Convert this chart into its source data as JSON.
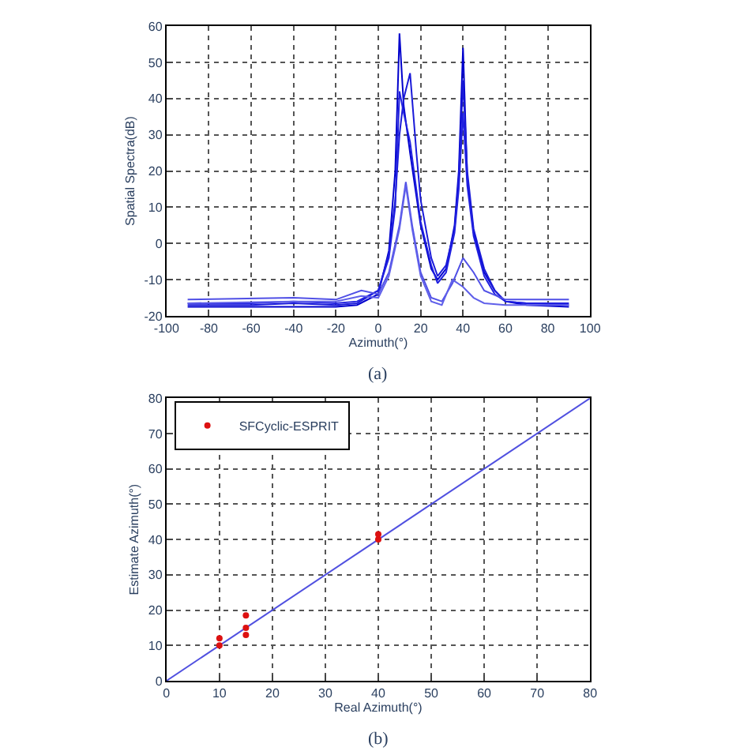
{
  "chart_data": [
    {
      "type": "line",
      "xlabel": "Azimuth(°)",
      "ylabel": "Spatial Spectra(dB)",
      "annotations": [
        "(a)"
      ],
      "xlim": [
        -100,
        100
      ],
      "xticks": [
        -100,
        -80,
        -60,
        -40,
        -20,
        0,
        20,
        40,
        60,
        80,
        100
      ],
      "ylim": [
        -20,
        60
      ],
      "yticks": [
        -20,
        -10,
        0,
        10,
        20,
        30,
        40,
        50,
        60
      ],
      "grid": true,
      "legend": false,
      "line_style": "solid",
      "series": [
        {
          "color": "#0000cc",
          "x": [
            -90,
            -60,
            -40,
            -20,
            -10,
            0,
            5,
            8,
            10,
            12,
            15,
            20,
            25,
            28,
            32,
            36,
            38,
            40,
            42,
            45,
            50,
            55,
            60,
            70,
            90
          ],
          "values": [
            -17.5,
            -17.5,
            -17.5,
            -17.5,
            -17,
            -14,
            -2,
            20,
            58,
            38,
            25,
            5,
            -7,
            -10,
            -7,
            5,
            20,
            54,
            18,
            3,
            -8,
            -13,
            -16,
            -17,
            -17.5
          ]
        },
        {
          "color": "#1a1ad9",
          "x": [
            -90,
            -60,
            -40,
            -20,
            -10,
            0,
            5,
            8,
            10,
            12,
            15,
            18,
            20,
            25,
            28,
            32,
            36,
            38,
            40,
            42,
            45,
            50,
            55,
            60,
            70,
            90
          ],
          "values": [
            -17,
            -17,
            -16.5,
            -17,
            -16.5,
            -13,
            -3,
            12,
            30,
            40,
            47,
            25,
            12,
            -4,
            -9,
            -6,
            4,
            18,
            45,
            20,
            4,
            -7,
            -13,
            -16,
            -16.5,
            -17
          ]
        },
        {
          "color": "#2020e0",
          "x": [
            -90,
            -60,
            -40,
            -20,
            -10,
            0,
            5,
            8,
            10,
            12,
            15,
            20,
            25,
            28,
            32,
            36,
            38,
            40,
            42,
            45,
            50,
            55,
            60,
            70,
            90
          ],
          "values": [
            -16.5,
            -16.5,
            -16,
            -16.5,
            -16,
            -13,
            -4,
            10,
            42,
            36,
            28,
            6,
            -6,
            -11,
            -8,
            3,
            15,
            36,
            16,
            2,
            -9,
            -14,
            -16,
            -16.5,
            -16.5
          ]
        },
        {
          "color": "#5050e6",
          "x": [
            -90,
            -40,
            -20,
            -8,
            0,
            5,
            10,
            13,
            16,
            20,
            25,
            30,
            35,
            40,
            45,
            50,
            60,
            90
          ],
          "values": [
            -15.5,
            -15,
            -15.5,
            -13,
            -14,
            -8,
            5,
            17,
            5,
            -8,
            -15,
            -16,
            -11,
            -4,
            -8,
            -13,
            -15.5,
            -15.5
          ]
        },
        {
          "color": "#6060ea",
          "x": [
            -90,
            -40,
            -20,
            -8,
            0,
            5,
            10,
            13,
            16,
            20,
            25,
            30,
            35,
            40,
            45,
            50,
            60,
            90
          ],
          "values": [
            -16.5,
            -16,
            -16,
            -14.5,
            -15,
            -9,
            4,
            16,
            4,
            -9,
            -16,
            -17,
            -10,
            -12,
            -15,
            -16.5,
            -17,
            -17
          ]
        }
      ]
    },
    {
      "type": "scatter",
      "xlabel": "Real Azimuth(°)",
      "ylabel": "Estimate Azimuth(°)",
      "annotations": [
        "(b)"
      ],
      "xlim": [
        0,
        80
      ],
      "xticks": [
        0,
        10,
        20,
        30,
        40,
        50,
        60,
        70,
        80
      ],
      "ylim": [
        0,
        80
      ],
      "yticks": [
        0,
        10,
        20,
        30,
        40,
        50,
        60,
        70,
        80
      ],
      "grid": true,
      "legend": "top left",
      "series": [
        {
          "type": "line",
          "color": "#5050e0",
          "x": [
            0,
            80
          ],
          "values": [
            0,
            80
          ],
          "marker": "none",
          "line_style": "solid"
        },
        {
          "name": "SFCyclic-ESPRIT",
          "color": "#dd1111",
          "marker": "circle",
          "x": [
            10,
            10,
            15,
            15,
            15,
            40,
            40
          ],
          "values": [
            10,
            12,
            18.5,
            15,
            13,
            40,
            41.5
          ]
        }
      ]
    }
  ]
}
